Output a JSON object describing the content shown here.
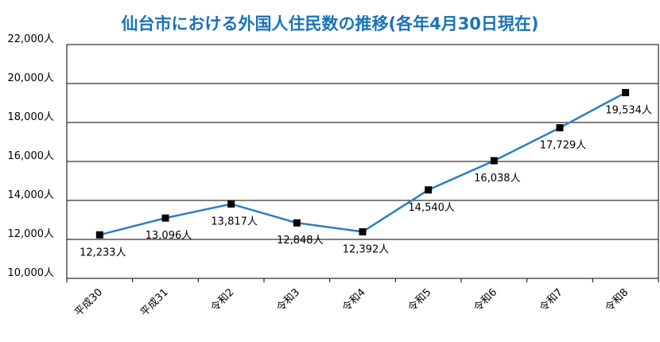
{
  "colors": {
    "title": "#1a73b8",
    "line": "#2e7fc4",
    "marker": "#000000",
    "grid": "#000000"
  },
  "chart_data": {
    "type": "line",
    "title": "仙台市における外国人住民数の推移(各年4月30日現在)",
    "xlabel": "",
    "ylabel": "",
    "unit": "人",
    "categories": [
      "平成30",
      "平成31",
      "令和2",
      "令和3",
      "令和4",
      "令和5",
      "令和6",
      "令和7",
      "令和8"
    ],
    "values": [
      12233,
      13096,
      13817,
      12848,
      12392,
      14540,
      16038,
      17729,
      19534
    ],
    "value_labels": [
      "12,233人",
      "13,096人",
      "13,817人",
      "12,848人",
      "12,392人",
      "14,540人",
      "16,038人",
      "17,729人",
      "19,534人"
    ],
    "ylim": [
      10000,
      22000
    ],
    "yticks": [
      10000,
      12000,
      14000,
      16000,
      18000,
      20000,
      22000
    ],
    "ytick_labels": [
      "10,000人",
      "12,000人",
      "14,000人",
      "16,000人",
      "18,000人",
      "20,000人",
      "22,000人"
    ],
    "grid": true,
    "legend": "none"
  }
}
